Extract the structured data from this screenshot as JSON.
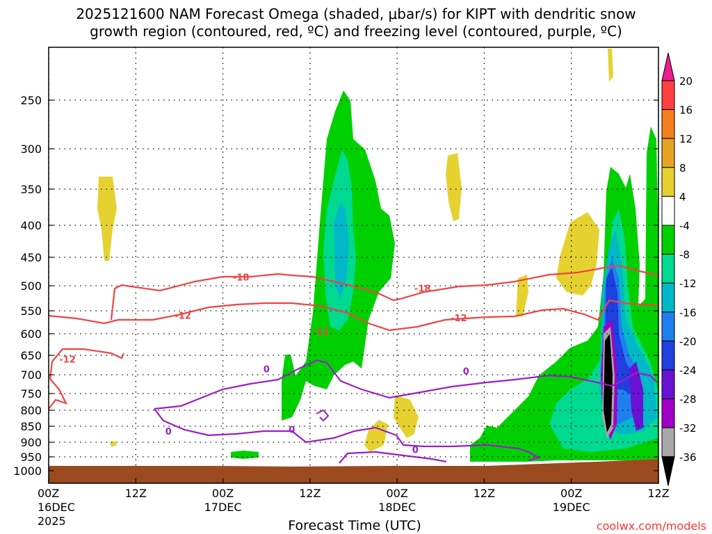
{
  "title_line1": "2025121600 NAM Forecast Omega (shaded, μbar/s) for KIPT with dendritic snow",
  "title_line2": "growth region (contoured, red, ºC) and freezing level (contoured, purple, ºC)",
  "credit": "coolwx.com/models",
  "chart_data": {
    "type": "time-height cross section",
    "xlabel": "Forecast Time (UTC)",
    "ylabel": "",
    "x_ticks": [
      {
        "hour": 0,
        "l1": "00Z",
        "l2": "16DEC",
        "l3": "2025"
      },
      {
        "hour": 12,
        "l1": "12Z",
        "l2": "",
        "l3": ""
      },
      {
        "hour": 24,
        "l1": "00Z",
        "l2": "17DEC",
        "l3": ""
      },
      {
        "hour": 36,
        "l1": "12Z",
        "l2": "",
        "l3": ""
      },
      {
        "hour": 48,
        "l1": "00Z",
        "l2": "18DEC",
        "l3": ""
      },
      {
        "hour": 60,
        "l1": "12Z",
        "l2": "",
        "l3": ""
      },
      {
        "hour": 72,
        "l1": "00Z",
        "l2": "19DEC",
        "l3": ""
      },
      {
        "hour": 84,
        "l1": "12Z",
        "l2": "",
        "l3": ""
      }
    ],
    "xlim": [
      0,
      84
    ],
    "y_ticks": [
      250,
      300,
      350,
      400,
      450,
      500,
      550,
      600,
      650,
      700,
      750,
      800,
      850,
      900,
      950,
      1000
    ],
    "ylim_hPa": [
      200,
      1000
    ],
    "grid": true,
    "colorbar": {
      "labels": [
        "20",
        "16",
        "12",
        "8",
        "4",
        "-4",
        "-8",
        "-12",
        "-16",
        "-20",
        "-24",
        "-28",
        "-32",
        "-36"
      ],
      "colors": [
        "#ff3f3f",
        "#f57f1e",
        "#e6a423",
        "#e5d230",
        "#ffffff",
        "#00cf00",
        "#00d990",
        "#00b8c8",
        "#1f7fef",
        "#1f3fdf",
        "#6a12d4",
        "#a200c8",
        "#a8a8a8"
      ],
      "top_arrow": "#ee1e8e",
      "bottom_arrow": "#000000"
    },
    "contour_labels": [
      {
        "text": "-18",
        "hour": 26.5,
        "p": 485,
        "color": "#ee4444"
      },
      {
        "text": "-18",
        "hour": 51.5,
        "p": 505,
        "color": "#ee4444"
      },
      {
        "text": "-12",
        "hour": 18.5,
        "p": 560,
        "color": "#ee4444"
      },
      {
        "text": "-12",
        "hour": 37.5,
        "p": 595,
        "color": "#ee4444"
      },
      {
        "text": "-12",
        "hour": 2.6,
        "p": 660,
        "color": "#ee4444"
      },
      {
        "text": "-12",
        "hour": 56.5,
        "p": 565,
        "color": "#ee4444"
      },
      {
        "text": "0",
        "hour": 30.0,
        "p": 685,
        "color": "#9a1ec8"
      },
      {
        "text": "0",
        "hour": 16.5,
        "p": 865,
        "color": "#9a1ec8"
      },
      {
        "text": "0",
        "hour": 33.5,
        "p": 860,
        "color": "#9a1ec8"
      },
      {
        "text": "0",
        "hour": 57.5,
        "p": 690,
        "color": "#9a1ec8"
      },
      {
        "text": "0",
        "hour": 50.5,
        "p": 925,
        "color": "#9a1ec8"
      }
    ]
  },
  "colors": {
    "terrain": "#9b4a20",
    "dgz_contour": "#ee4444",
    "freezing_contour": "#9a1ec8"
  }
}
